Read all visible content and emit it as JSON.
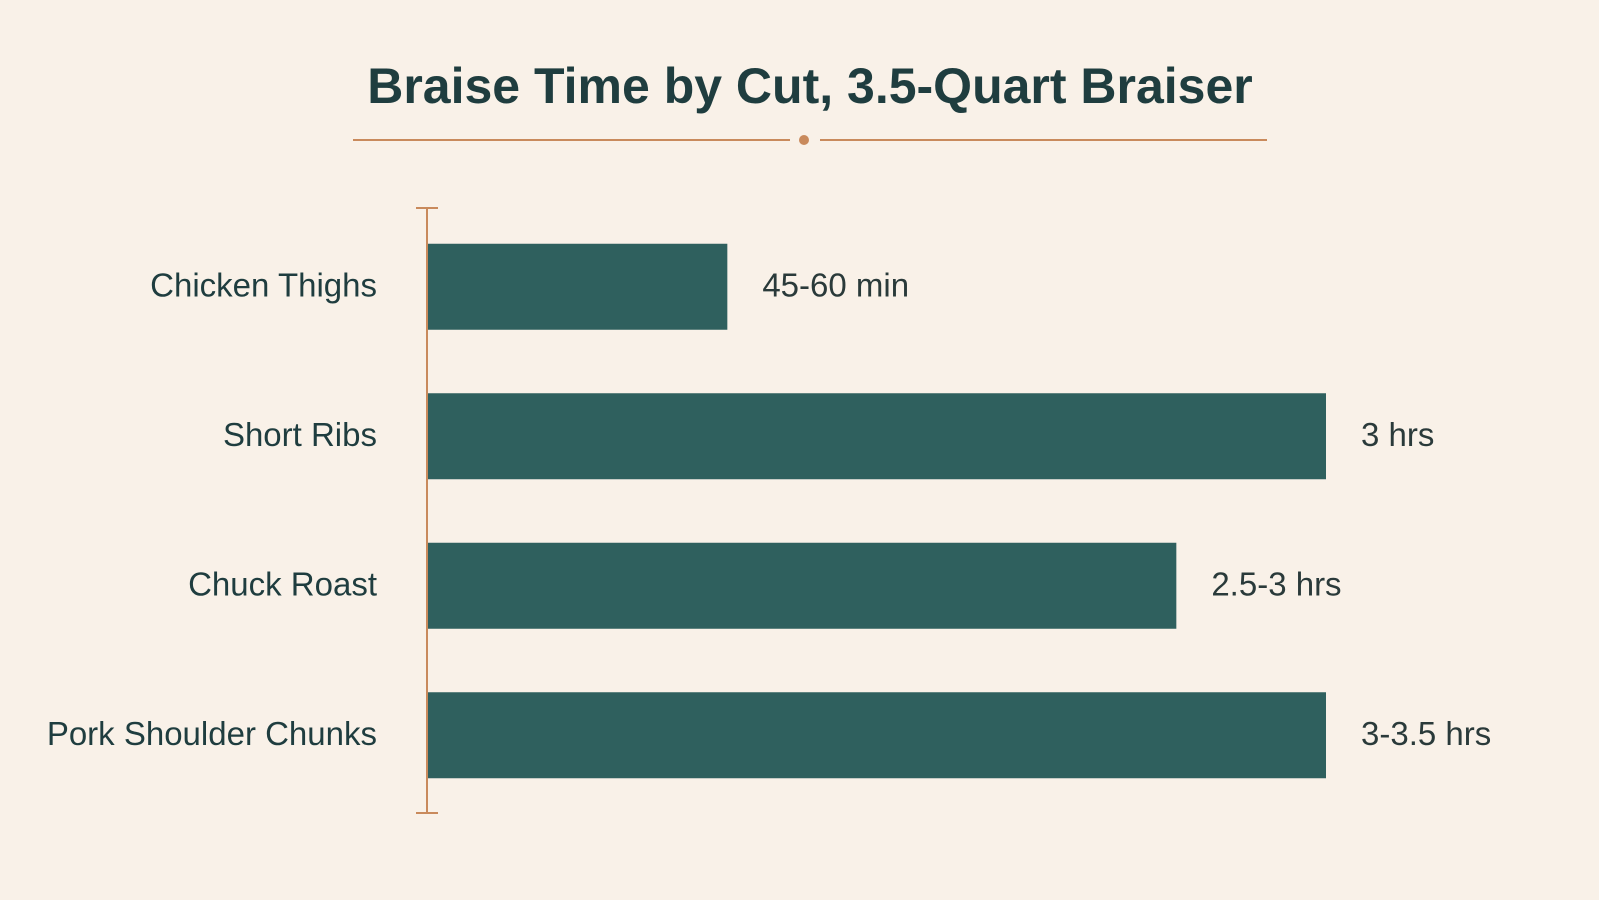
{
  "chart_data": {
    "type": "bar",
    "orientation": "horizontal",
    "title": "Braise Time by Cut, 3.5-Quart Braiser",
    "categories": [
      "Chicken Thighs",
      "Short Ribs",
      "Chuck Roast",
      "Pork Shoulder Chunks"
    ],
    "values": [
      1,
      3,
      2.5,
      3
    ],
    "value_labels": [
      "45-60 min",
      "3 hrs",
      "2.5-3 hrs",
      "3-3.5 hrs"
    ],
    "color": "#2f605e",
    "xlim": [
      0,
      3
    ]
  }
}
